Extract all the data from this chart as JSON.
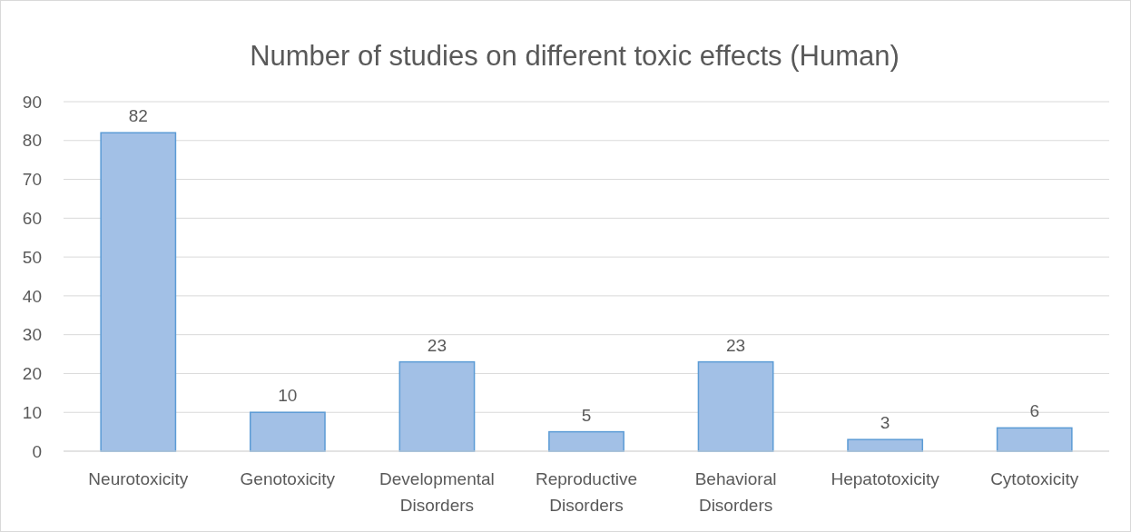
{
  "chart_data": {
    "type": "bar",
    "title": "Number of studies on different toxic effects (Human)",
    "categories": [
      "Neurotoxicity",
      "Genotoxicity",
      "Developmental Disorders",
      "Reproductive Disorders",
      "Behavioral Disorders",
      "Hepatotoxicity",
      "Cytotoxicity"
    ],
    "values": [
      82,
      10,
      23,
      5,
      23,
      3,
      6
    ],
    "color": "#a2c0e6",
    "ylim": [
      0,
      90
    ],
    "yticks": [
      0,
      10,
      20,
      30,
      40,
      50,
      60,
      70,
      80,
      90
    ],
    "grid": "y",
    "data_labels": true
  }
}
